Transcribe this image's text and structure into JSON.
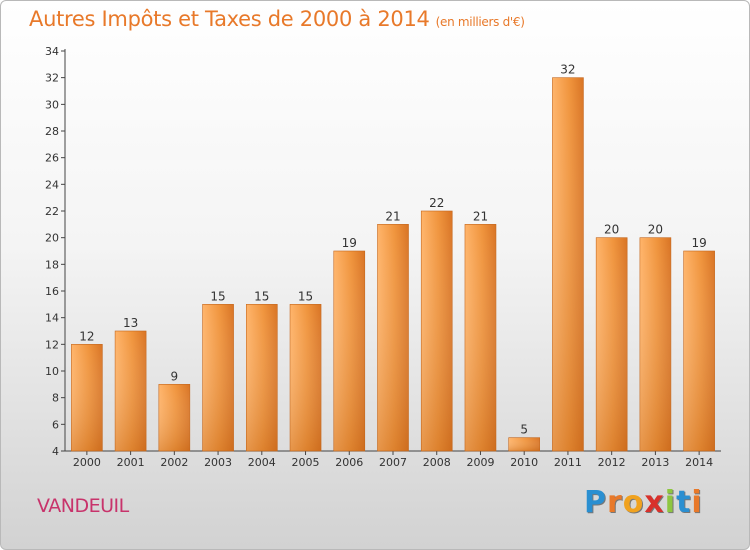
{
  "header": {
    "title": "Autres Impôts et Taxes de 2000 à 2014",
    "unit": "(en milliers d'€)"
  },
  "footer": {
    "commune": "VANDEUIL",
    "logo_letters": [
      "P",
      "r",
      "o",
      "x",
      "i",
      "t",
      "i"
    ],
    "logo_colors": [
      "#2a8fd1",
      "#e8792a",
      "#f0a21f",
      "#d8312b",
      "#8ec640",
      "#2a8fd1",
      "#e8792a"
    ]
  },
  "chart_data": {
    "type": "bar",
    "title": "Autres Impôts et Taxes de 2000 à 2014",
    "xlabel": "",
    "ylabel": "",
    "categories": [
      "2000",
      "2001",
      "2002",
      "2003",
      "2004",
      "2005",
      "2006",
      "2007",
      "2008",
      "2009",
      "2010",
      "2011",
      "2012",
      "2013",
      "2014"
    ],
    "values": [
      12,
      13,
      9,
      15,
      15,
      15,
      19,
      21,
      22,
      21,
      5,
      32,
      20,
      20,
      19
    ],
    "ylim": [
      4,
      34
    ],
    "yticks": [
      4,
      6,
      8,
      10,
      12,
      14,
      16,
      18,
      20,
      22,
      24,
      26,
      28,
      30,
      32,
      34
    ],
    "grid": false,
    "bar_color": "#f0953c",
    "legend": "none"
  }
}
